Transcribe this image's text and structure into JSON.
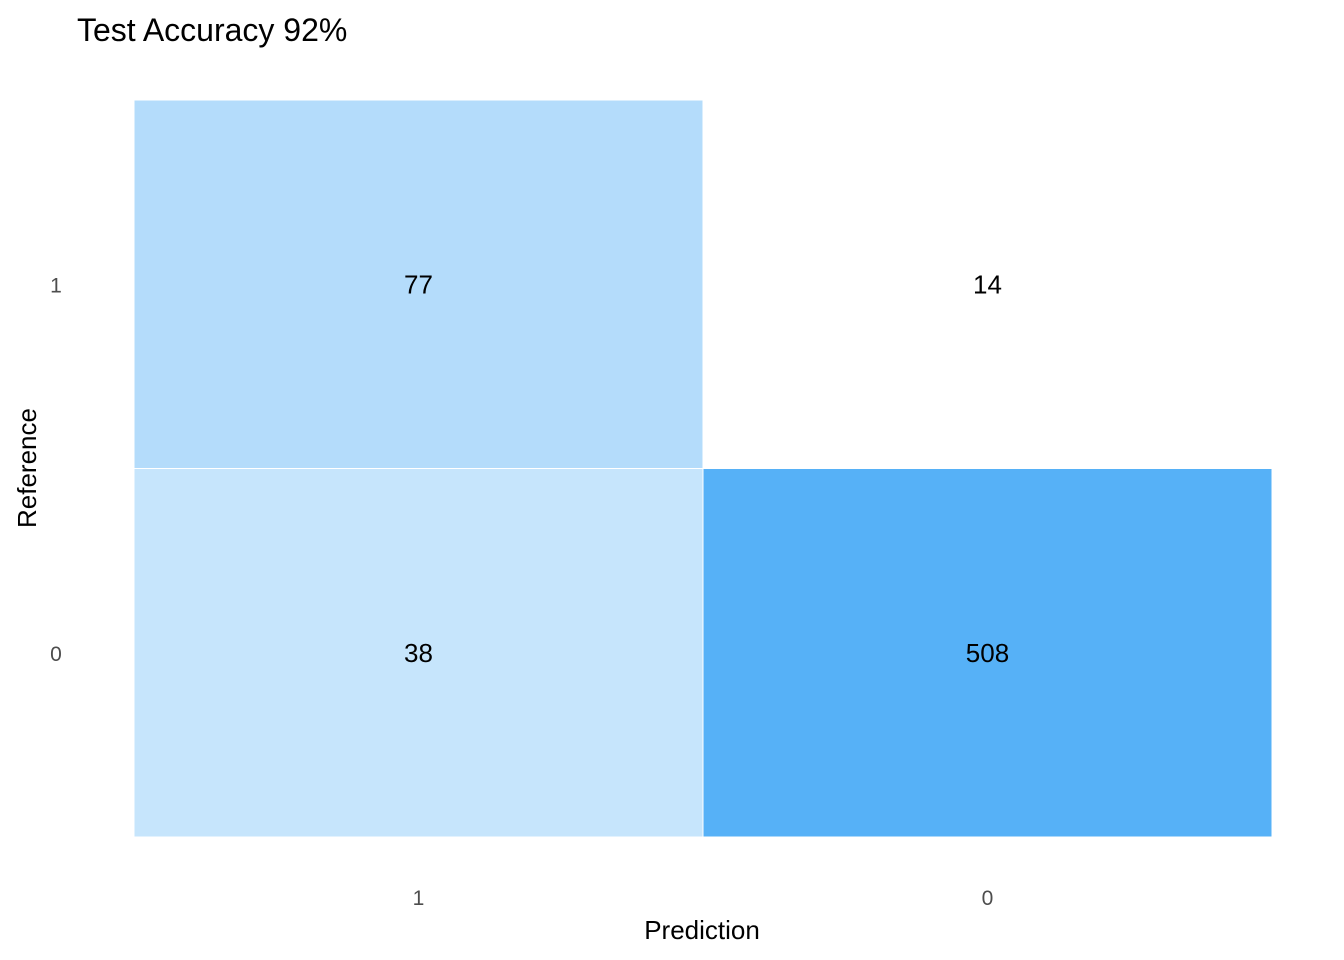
{
  "chart_data": {
    "type": "heatmap",
    "title": "Test Accuracy 92%",
    "xlabel": "Prediction",
    "ylabel": "Reference",
    "x_categories": [
      "1",
      "0"
    ],
    "y_categories": [
      "1",
      "0"
    ],
    "cells": [
      {
        "prediction": "1",
        "reference": "1",
        "value": 77
      },
      {
        "prediction": "0",
        "reference": "1",
        "value": 14
      },
      {
        "prediction": "1",
        "reference": "0",
        "value": 38
      },
      {
        "prediction": "0",
        "reference": "0",
        "value": 508
      }
    ],
    "color_low": "#ffffff",
    "color_high": "#56b1f7",
    "grid": false,
    "legend": "none"
  }
}
